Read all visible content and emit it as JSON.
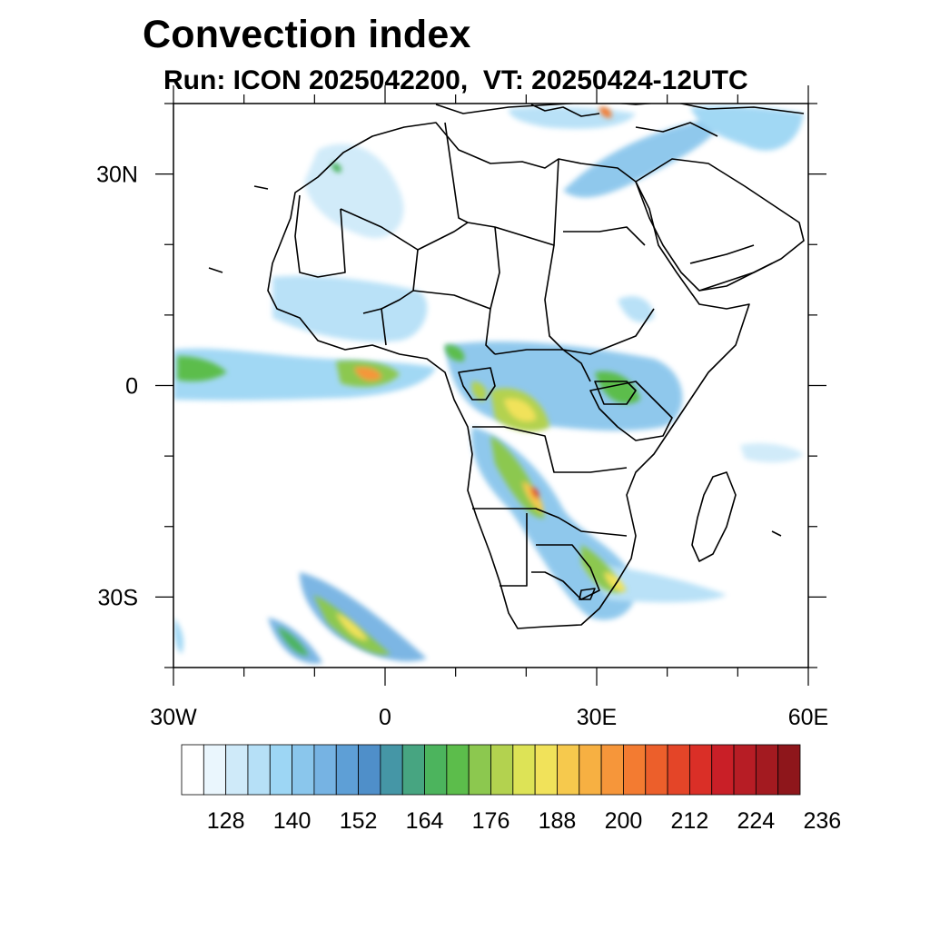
{
  "title": "Convection index",
  "subtitle": "Run: ICON 2025042200,  VT: 20250424-12UTC",
  "axes": {
    "lon_ticks": [
      {
        "value": -30,
        "label": "30W"
      },
      {
        "value": 0,
        "label": "0"
      },
      {
        "value": 30,
        "label": "30E"
      },
      {
        "value": 60,
        "label": "60E"
      }
    ],
    "lat_ticks": [
      {
        "value": 30,
        "label": "30N"
      },
      {
        "value": 0,
        "label": "0"
      },
      {
        "value": -30,
        "label": "30S"
      }
    ],
    "lon_range": [
      -30,
      60
    ],
    "lat_range": [
      -40,
      40
    ]
  },
  "colorbar": {
    "levels": [
      128,
      140,
      152,
      164,
      176,
      188,
      200,
      212,
      224,
      236
    ],
    "colors": [
      "#ffffff",
      "#eaf6fd",
      "#cfeaf9",
      "#b6e0f7",
      "#9dd6f4",
      "#8ac6ec",
      "#76b3e3",
      "#5e9fd6",
      "#4f8fc9",
      "#4596a6",
      "#47a581",
      "#4cb45d",
      "#5cbd4b",
      "#8cc84f",
      "#b3d24f",
      "#dde356",
      "#f1e25a",
      "#f6c94d",
      "#f7b042",
      "#f6963a",
      "#f37b31",
      "#ec5f2b",
      "#e44528",
      "#da2f27",
      "#c91f27",
      "#b71d25",
      "#a31a20",
      "#8e161b"
    ]
  },
  "map_features": {
    "land_outline_color": "#000000",
    "ocean_color": "#ffffff"
  }
}
